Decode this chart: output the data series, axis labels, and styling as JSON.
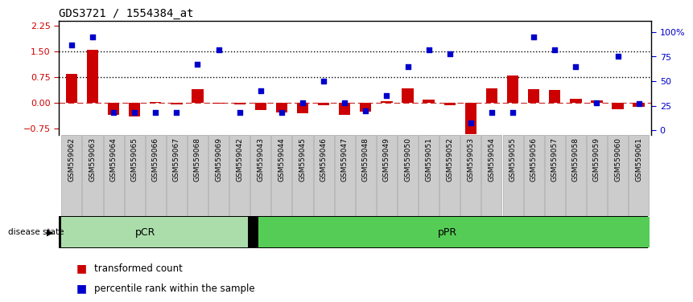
{
  "title": "GDS3721 / 1554384_at",
  "samples": [
    "GSM559062",
    "GSM559063",
    "GSM559064",
    "GSM559065",
    "GSM559066",
    "GSM559067",
    "GSM559068",
    "GSM559069",
    "GSM559042",
    "GSM559043",
    "GSM559044",
    "GSM559045",
    "GSM559046",
    "GSM559047",
    "GSM559048",
    "GSM559049",
    "GSM559050",
    "GSM559051",
    "GSM559052",
    "GSM559053",
    "GSM559054",
    "GSM559055",
    "GSM559056",
    "GSM559057",
    "GSM559058",
    "GSM559059",
    "GSM559060",
    "GSM559061"
  ],
  "bar_values": [
    0.85,
    1.55,
    -0.35,
    -0.4,
    0.02,
    -0.05,
    0.4,
    -0.02,
    -0.05,
    -0.22,
    -0.28,
    -0.3,
    -0.08,
    -0.35,
    -0.25,
    0.05,
    0.42,
    0.1,
    -0.08,
    -0.9,
    0.42,
    0.8,
    0.4,
    0.38,
    0.12,
    0.08,
    -0.18,
    -0.12
  ],
  "dot_values": [
    87,
    95,
    18,
    18,
    18,
    18,
    67,
    82,
    18,
    40,
    18,
    28,
    50,
    28,
    20,
    35,
    65,
    82,
    78,
    8,
    18,
    18,
    95,
    82,
    65,
    28,
    75,
    27
  ],
  "pCR_count": 9,
  "bar_color": "#cc0000",
  "dot_color": "#0000cc",
  "zero_line_color": "#cc3333",
  "pcr_color": "#aaddaa",
  "ppr_color": "#55cc55",
  "ylim_left": [
    -0.93,
    2.38
  ],
  "ylim_right": [
    -4.5,
    111
  ],
  "yticks_left": [
    -0.75,
    0.0,
    0.75,
    1.5,
    2.25
  ],
  "yticks_right": [
    0,
    25,
    50,
    75,
    100
  ],
  "ytick_labels_right": [
    "0",
    "25",
    "50",
    "75",
    "100%"
  ]
}
